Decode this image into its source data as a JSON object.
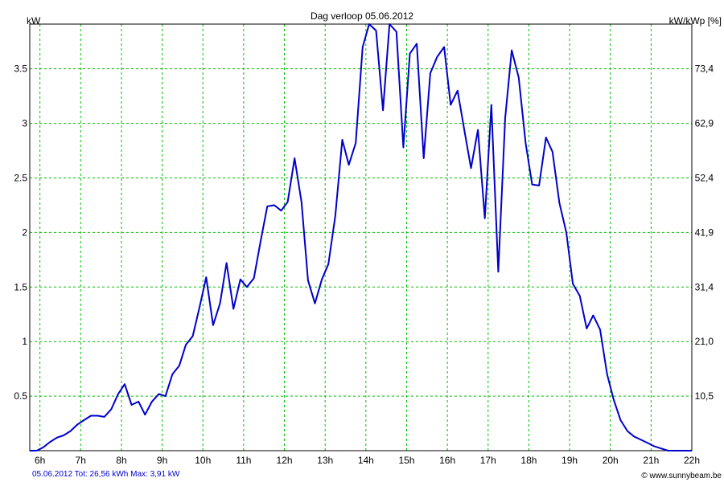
{
  "chart_data": {
    "type": "line",
    "title": "Dag  verloop 05.06.2012",
    "ylabel_left": "kW",
    "ylabel_right": "kW/kWp [%]",
    "footer_left": "05.06.2012 Tot: 26,56 kWh Max: 3,91 kW",
    "footer_right": "© www.sunnybeam.be",
    "xlim": [
      5.75,
      22
    ],
    "ylim": [
      0,
      3.91
    ],
    "grid": true,
    "x_ticks": [
      {
        "v": 6,
        "label": "6h"
      },
      {
        "v": 7,
        "label": "7h"
      },
      {
        "v": 8,
        "label": "8h"
      },
      {
        "v": 9,
        "label": "9h"
      },
      {
        "v": 10,
        "label": "10h"
      },
      {
        "v": 11,
        "label": "11h"
      },
      {
        "v": 12,
        "label": "12h"
      },
      {
        "v": 13,
        "label": "13h"
      },
      {
        "v": 14,
        "label": "14h"
      },
      {
        "v": 15,
        "label": "15h"
      },
      {
        "v": 16,
        "label": "16h"
      },
      {
        "v": 17,
        "label": "17h"
      },
      {
        "v": 18,
        "label": "18h"
      },
      {
        "v": 19,
        "label": "19h"
      },
      {
        "v": 20,
        "label": "20h"
      },
      {
        "v": 21,
        "label": "21h"
      },
      {
        "v": 22,
        "label": "22h"
      }
    ],
    "y_ticks_left": [
      {
        "v": 0.5,
        "label": "0.5"
      },
      {
        "v": 1,
        "label": "1"
      },
      {
        "v": 1.5,
        "label": "1.5"
      },
      {
        "v": 2,
        "label": "2"
      },
      {
        "v": 2.5,
        "label": "2.5"
      },
      {
        "v": 3,
        "label": "3"
      },
      {
        "v": 3.5,
        "label": "3.5"
      }
    ],
    "y_ticks_right": [
      {
        "v": 0.5,
        "label": "10,5"
      },
      {
        "v": 1,
        "label": "21,0"
      },
      {
        "v": 1.5,
        "label": "31,4"
      },
      {
        "v": 2,
        "label": "41,9"
      },
      {
        "v": 2.5,
        "label": "52,4"
      },
      {
        "v": 3,
        "label": "62,9"
      },
      {
        "v": 3.5,
        "label": "73,4"
      }
    ],
    "series": [
      {
        "color": "#0000cc",
        "x": [
          5.75,
          5.92,
          6.08,
          6.25,
          6.42,
          6.58,
          6.75,
          6.92,
          7.08,
          7.25,
          7.42,
          7.58,
          7.75,
          7.92,
          8.08,
          8.25,
          8.42,
          8.58,
          8.75,
          8.92,
          9.08,
          9.25,
          9.42,
          9.58,
          9.75,
          9.92,
          10.08,
          10.25,
          10.42,
          10.58,
          10.75,
          10.92,
          11.08,
          11.25,
          11.42,
          11.58,
          11.75,
          11.92,
          12.08,
          12.25,
          12.42,
          12.58,
          12.75,
          12.92,
          13.08,
          13.25,
          13.42,
          13.58,
          13.75,
          13.92,
          14.08,
          14.25,
          14.42,
          14.58,
          14.75,
          14.92,
          15.08,
          15.25,
          15.42,
          15.58,
          15.75,
          15.92,
          16.08,
          16.25,
          16.42,
          16.58,
          16.75,
          16.92,
          17.08,
          17.25,
          17.42,
          17.58,
          17.75,
          17.92,
          18.08,
          18.25,
          18.42,
          18.58,
          18.75,
          18.92,
          19.08,
          19.25,
          19.42,
          19.58,
          19.75,
          19.92,
          20.08,
          20.25,
          20.42,
          20.58,
          20.75,
          20.92,
          21.08,
          21.25,
          21.42,
          21.58,
          21.75,
          21.92,
          22.0
        ],
        "values": [
          0.0,
          0.0,
          0.03,
          0.08,
          0.12,
          0.14,
          0.18,
          0.24,
          0.28,
          0.32,
          0.32,
          0.31,
          0.38,
          0.52,
          0.61,
          0.42,
          0.45,
          0.33,
          0.45,
          0.52,
          0.5,
          0.7,
          0.78,
          0.97,
          1.05,
          1.32,
          1.59,
          1.15,
          1.35,
          1.72,
          1.3,
          1.57,
          1.5,
          1.58,
          1.93,
          2.24,
          2.25,
          2.2,
          2.28,
          2.68,
          2.28,
          1.56,
          1.35,
          1.57,
          1.71,
          2.15,
          2.85,
          2.62,
          2.82,
          3.7,
          3.91,
          3.85,
          3.12,
          3.91,
          3.84,
          2.78,
          3.64,
          3.73,
          2.68,
          3.46,
          3.61,
          3.7,
          3.17,
          3.3,
          2.93,
          2.59,
          2.94,
          2.13,
          3.17,
          1.64,
          3.05,
          3.67,
          3.42,
          2.82,
          2.44,
          2.43,
          2.87,
          2.74,
          2.27,
          2.0,
          1.53,
          1.42,
          1.12,
          1.24,
          1.11,
          0.7,
          0.47,
          0.28,
          0.18,
          0.13,
          0.1,
          0.07,
          0.04,
          0.02,
          0.0,
          0.0,
          0.0,
          0.0,
          0.0
        ]
      }
    ]
  }
}
